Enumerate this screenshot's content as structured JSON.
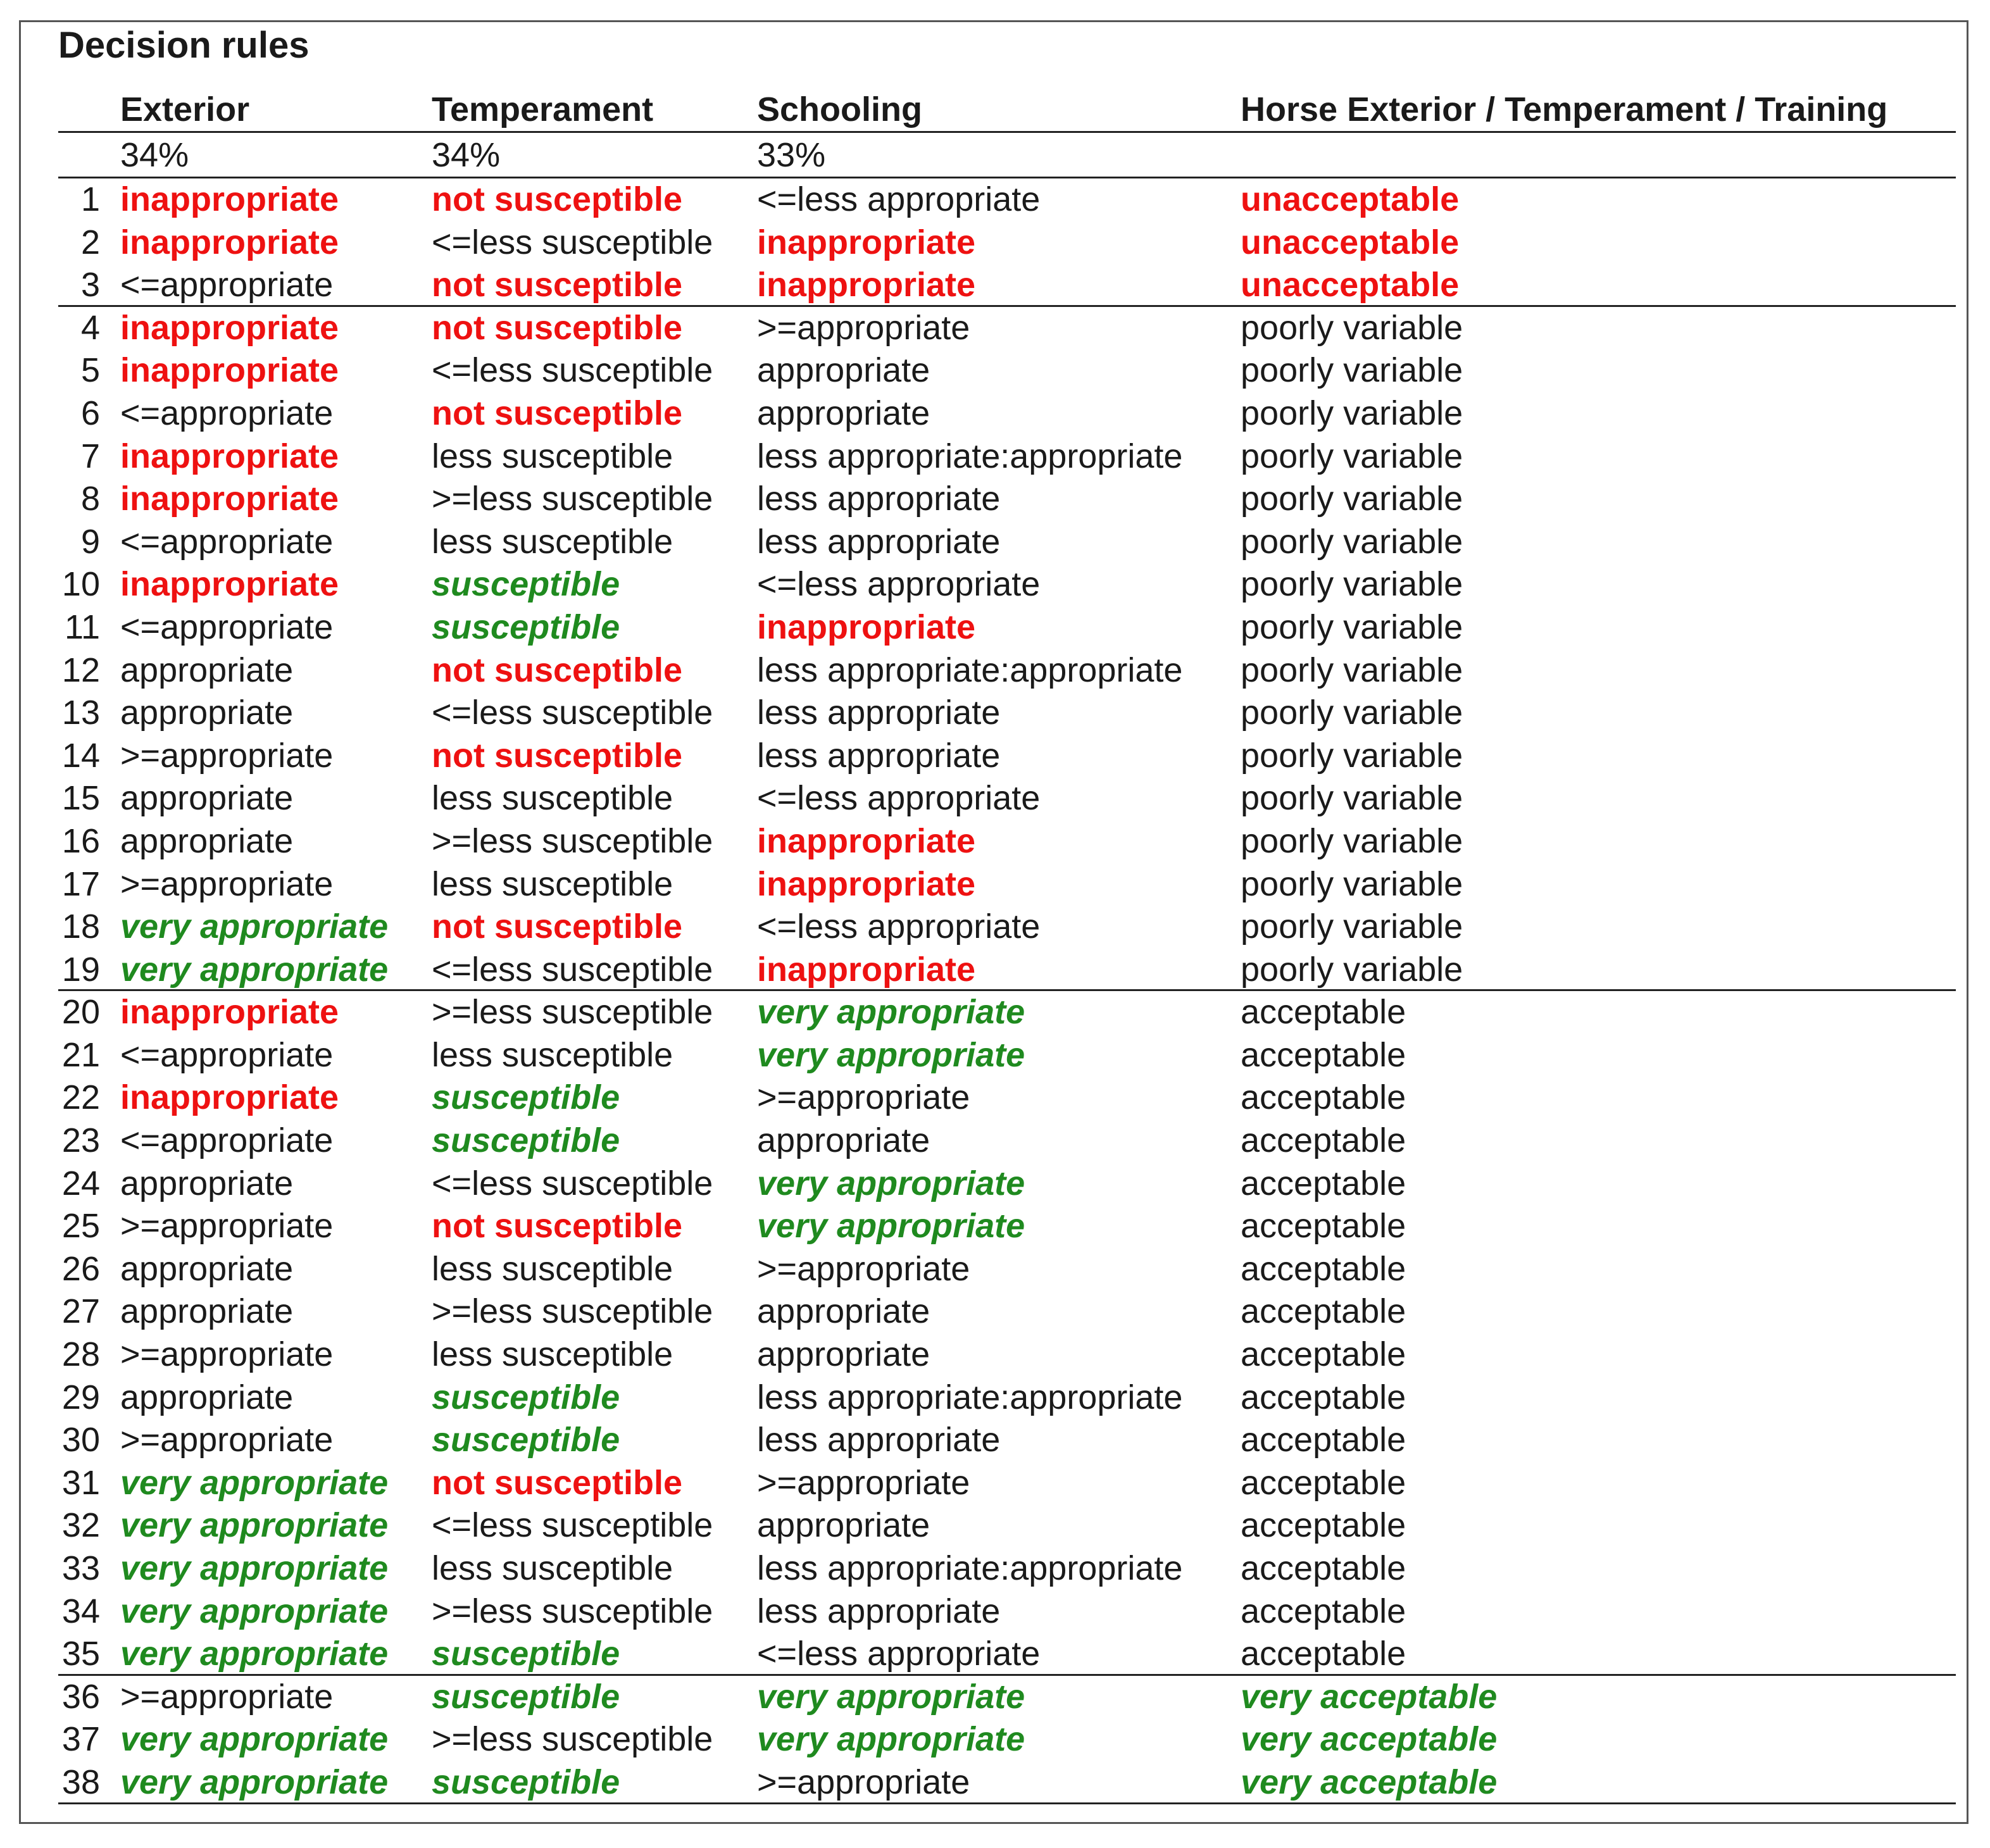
{
  "title": "Decision rules",
  "colors": {
    "bad": "#ee1111",
    "good": "#1f8a1f",
    "text": "#1a1a1a"
  },
  "headers": {
    "exterior": "Exterior",
    "temperament": "Temperament",
    "schooling": "Schooling",
    "result": "Horse Exterior / Temperament / Training"
  },
  "weights": {
    "exterior": "34%",
    "temperament": "34%",
    "schooling": "33%"
  },
  "rows": [
    {
      "n": "1",
      "ext": "inappropriate",
      "tem": "not susceptible",
      "sch": "<=less appropriate",
      "res": "unacceptable"
    },
    {
      "n": "2",
      "ext": "inappropriate",
      "tem": "<=less susceptible",
      "sch": "inappropriate",
      "res": "unacceptable"
    },
    {
      "n": "3",
      "ext": "<=appropriate",
      "tem": "not susceptible",
      "sch": "inappropriate",
      "res": "unacceptable"
    },
    {
      "n": "4",
      "ext": "inappropriate",
      "tem": "not susceptible",
      "sch": ">=appropriate",
      "res": "poorly variable"
    },
    {
      "n": "5",
      "ext": "inappropriate",
      "tem": "<=less susceptible",
      "sch": "appropriate",
      "res": "poorly variable"
    },
    {
      "n": "6",
      "ext": "<=appropriate",
      "tem": "not susceptible",
      "sch": "appropriate",
      "res": "poorly variable"
    },
    {
      "n": "7",
      "ext": "inappropriate",
      "tem": "less susceptible",
      "sch": "less appropriate:appropriate",
      "res": "poorly variable"
    },
    {
      "n": "8",
      "ext": "inappropriate",
      "tem": ">=less susceptible",
      "sch": "less appropriate",
      "res": "poorly variable"
    },
    {
      "n": "9",
      "ext": "<=appropriate",
      "tem": "less susceptible",
      "sch": "less appropriate",
      "res": "poorly variable"
    },
    {
      "n": "10",
      "ext": "inappropriate",
      "tem": "susceptible",
      "sch": "<=less appropriate",
      "res": "poorly variable"
    },
    {
      "n": "11",
      "ext": "<=appropriate",
      "tem": "susceptible",
      "sch": "inappropriate",
      "res": "poorly variable"
    },
    {
      "n": "12",
      "ext": "appropriate",
      "tem": "not susceptible",
      "sch": "less appropriate:appropriate",
      "res": "poorly variable"
    },
    {
      "n": "13",
      "ext": "appropriate",
      "tem": "<=less susceptible",
      "sch": "less appropriate",
      "res": "poorly variable"
    },
    {
      "n": "14",
      "ext": ">=appropriate",
      "tem": "not susceptible",
      "sch": "less appropriate",
      "res": "poorly variable"
    },
    {
      "n": "15",
      "ext": "appropriate",
      "tem": "less susceptible",
      "sch": "<=less appropriate",
      "res": "poorly variable"
    },
    {
      "n": "16",
      "ext": "appropriate",
      "tem": ">=less susceptible",
      "sch": "inappropriate",
      "res": "poorly variable"
    },
    {
      "n": "17",
      "ext": ">=appropriate",
      "tem": "less susceptible",
      "sch": "inappropriate",
      "res": "poorly variable"
    },
    {
      "n": "18",
      "ext": "very appropriate",
      "tem": "not susceptible",
      "sch": "<=less appropriate",
      "res": "poorly variable"
    },
    {
      "n": "19",
      "ext": "very appropriate",
      "tem": "<=less susceptible",
      "sch": "inappropriate",
      "res": "poorly variable"
    },
    {
      "n": "20",
      "ext": "inappropriate",
      "tem": ">=less susceptible",
      "sch": "very appropriate",
      "res": "acceptable"
    },
    {
      "n": "21",
      "ext": "<=appropriate",
      "tem": "less susceptible",
      "sch": "very appropriate",
      "res": "acceptable"
    },
    {
      "n": "22",
      "ext": "inappropriate",
      "tem": "susceptible",
      "sch": ">=appropriate",
      "res": "acceptable"
    },
    {
      "n": "23",
      "ext": "<=appropriate",
      "tem": "susceptible",
      "sch": "appropriate",
      "res": "acceptable"
    },
    {
      "n": "24",
      "ext": "appropriate",
      "tem": "<=less susceptible",
      "sch": "very appropriate",
      "res": "acceptable"
    },
    {
      "n": "25",
      "ext": ">=appropriate",
      "tem": "not susceptible",
      "sch": "very appropriate",
      "res": "acceptable"
    },
    {
      "n": "26",
      "ext": "appropriate",
      "tem": "less susceptible",
      "sch": ">=appropriate",
      "res": "acceptable"
    },
    {
      "n": "27",
      "ext": "appropriate",
      "tem": ">=less susceptible",
      "sch": "appropriate",
      "res": "acceptable"
    },
    {
      "n": "28",
      "ext": ">=appropriate",
      "tem": "less susceptible",
      "sch": "appropriate",
      "res": "acceptable"
    },
    {
      "n": "29",
      "ext": "appropriate",
      "tem": "susceptible",
      "sch": "less appropriate:appropriate",
      "res": "acceptable"
    },
    {
      "n": "30",
      "ext": ">=appropriate",
      "tem": "susceptible",
      "sch": "less appropriate",
      "res": "acceptable"
    },
    {
      "n": "31",
      "ext": "very appropriate",
      "tem": "not susceptible",
      "sch": ">=appropriate",
      "res": "acceptable"
    },
    {
      "n": "32",
      "ext": "very appropriate",
      "tem": "<=less susceptible",
      "sch": "appropriate",
      "res": "acceptable"
    },
    {
      "n": "33",
      "ext": "very appropriate",
      "tem": "less susceptible",
      "sch": "less appropriate:appropriate",
      "res": "acceptable"
    },
    {
      "n": "34",
      "ext": "very appropriate",
      "tem": ">=less susceptible",
      "sch": "less appropriate",
      "res": "acceptable"
    },
    {
      "n": "35",
      "ext": "very appropriate",
      "tem": "susceptible",
      "sch": "<=less appropriate",
      "res": "acceptable"
    },
    {
      "n": "36",
      "ext": ">=appropriate",
      "tem": "susceptible",
      "sch": "very appropriate",
      "res": "very acceptable"
    },
    {
      "n": "37",
      "ext": "very appropriate",
      "tem": ">=less susceptible",
      "sch": "very appropriate",
      "res": "very acceptable"
    },
    {
      "n": "38",
      "ext": "very appropriate",
      "tem": "susceptible",
      "sch": ">=appropriate",
      "res": "very acceptable"
    }
  ]
}
